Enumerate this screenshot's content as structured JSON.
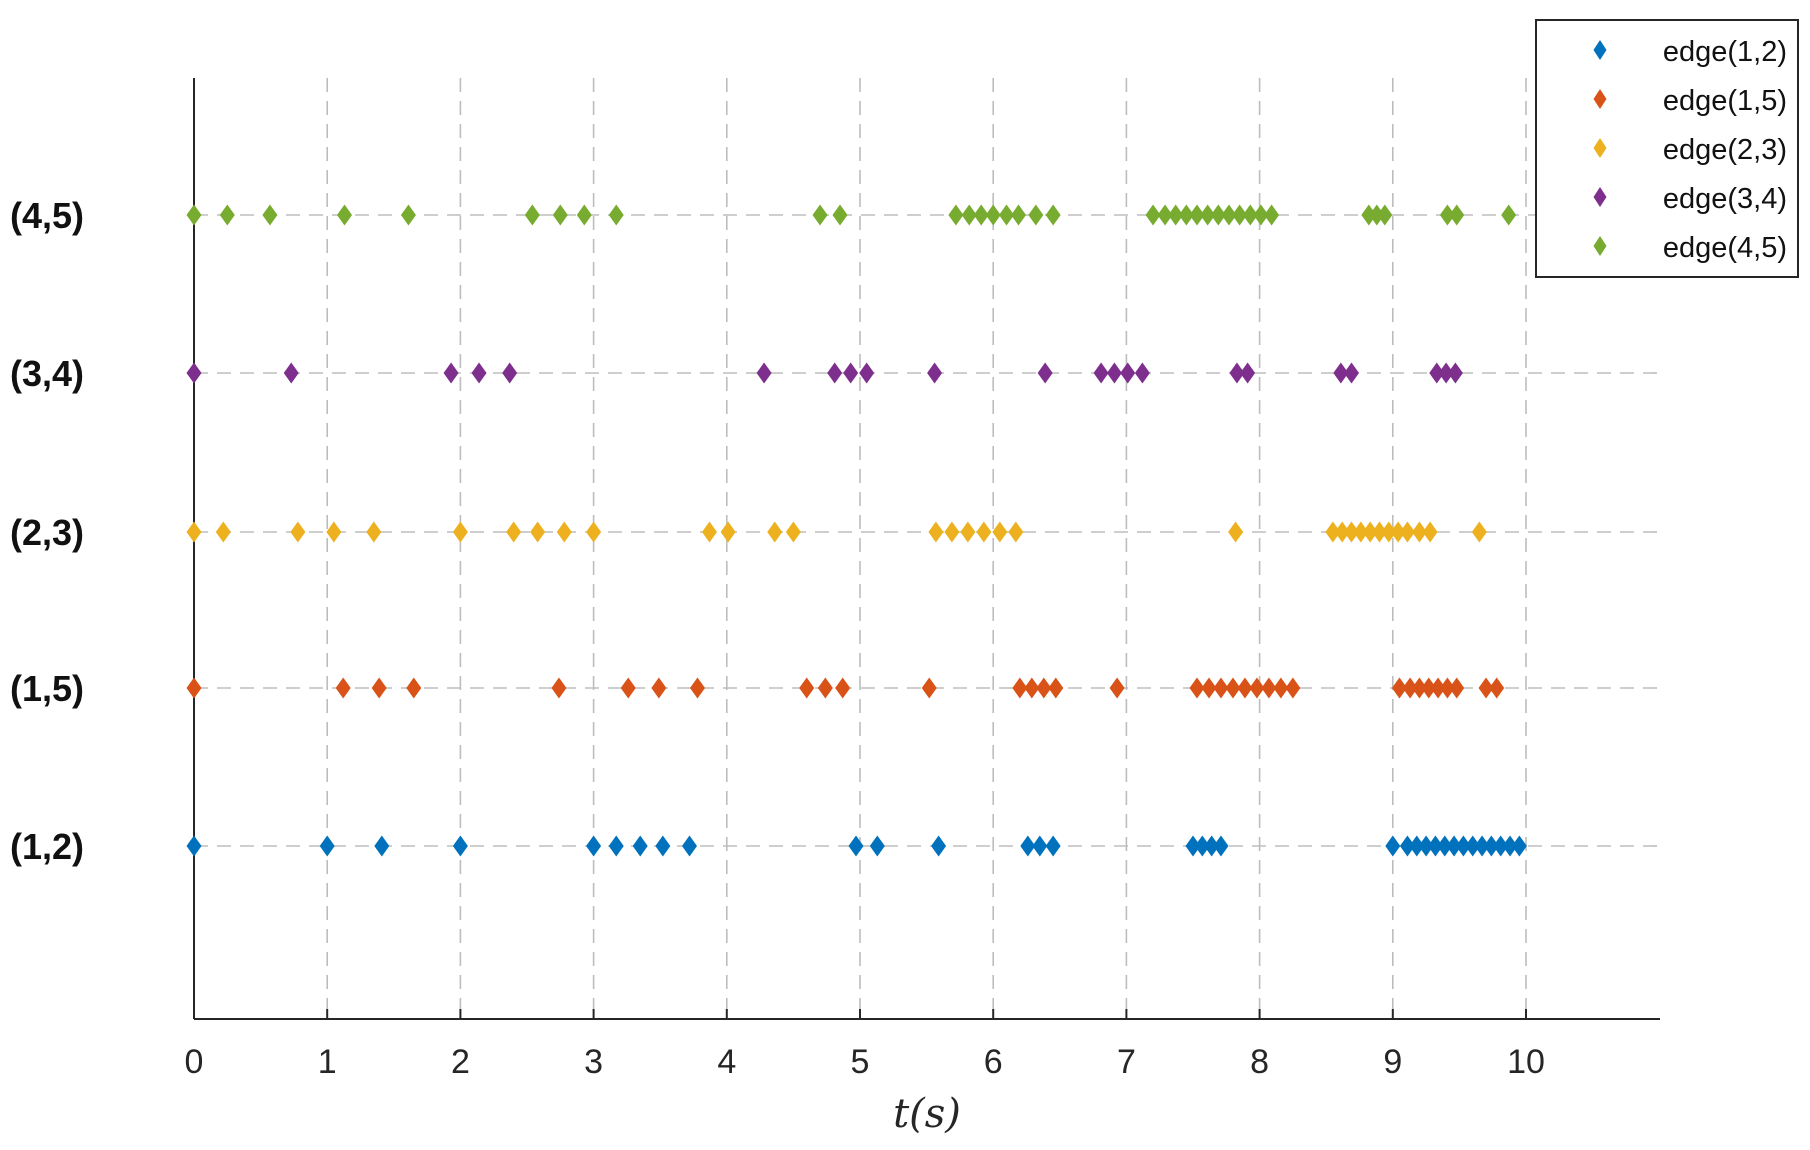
{
  "chart_data": {
    "type": "scatter",
    "title": "",
    "xlabel": "t(s)",
    "ylabel": "",
    "xlim": [
      0,
      11
    ],
    "xticks": [
      0,
      1,
      2,
      3,
      4,
      5,
      6,
      7,
      8,
      9,
      10
    ],
    "grid": true,
    "grid_style": "dashed",
    "marker": "diamond",
    "legend_position": "top-right",
    "rows": [
      "(1,2)",
      "(1,5)",
      "(2,3)",
      "(3,4)",
      "(4,5)"
    ],
    "series": [
      {
        "name": "edge(1,2)",
        "row": "(1,2)",
        "color": "#0072BD",
        "x": [
          0,
          1.0,
          1.41,
          2.0,
          3.0,
          3.17,
          3.35,
          3.52,
          3.72,
          4.97,
          5.13,
          5.59,
          6.26,
          6.35,
          6.45,
          7.5,
          7.57,
          7.64,
          7.71,
          9.0,
          9.11,
          9.18,
          9.25,
          9.32,
          9.39,
          9.46,
          9.53,
          9.6,
          9.67,
          9.74,
          9.81,
          9.88,
          9.95
        ]
      },
      {
        "name": "edge(1,5)",
        "row": "(1,5)",
        "color": "#D95319",
        "x": [
          0,
          1.12,
          1.39,
          1.65,
          2.74,
          3.26,
          3.49,
          3.78,
          4.6,
          4.74,
          4.87,
          5.52,
          6.2,
          6.29,
          6.38,
          6.47,
          6.93,
          7.53,
          7.62,
          7.71,
          7.8,
          7.89,
          7.98,
          8.07,
          8.16,
          8.25,
          9.05,
          9.13,
          9.2,
          9.27,
          9.34,
          9.41,
          9.48,
          9.7,
          9.78
        ]
      },
      {
        "name": "edge(2,3)",
        "row": "(2,3)",
        "color": "#EDB120",
        "x": [
          0,
          0.22,
          0.78,
          1.05,
          1.35,
          2.0,
          2.4,
          2.58,
          2.78,
          3.0,
          3.87,
          4.01,
          4.36,
          4.5,
          5.57,
          5.69,
          5.81,
          5.93,
          6.05,
          6.17,
          7.82,
          8.55,
          8.62,
          8.69,
          8.76,
          8.83,
          8.9,
          8.97,
          9.04,
          9.11,
          9.2,
          9.28,
          9.65
        ]
      },
      {
        "name": "edge(3,4)",
        "row": "(3,4)",
        "color": "#7E2F8E",
        "x": [
          0,
          0.73,
          1.93,
          2.14,
          2.37,
          4.28,
          4.81,
          4.93,
          5.05,
          5.56,
          6.39,
          6.81,
          6.91,
          7.01,
          7.12,
          7.83,
          7.91,
          8.61,
          8.69,
          9.33,
          9.4,
          9.47
        ]
      },
      {
        "name": "edge(4,5)",
        "row": "(4,5)",
        "color": "#77AC30",
        "x": [
          0,
          0.25,
          0.57,
          1.13,
          1.61,
          2.54,
          2.75,
          2.93,
          3.17,
          4.7,
          4.85,
          5.72,
          5.82,
          5.91,
          6.0,
          6.1,
          6.19,
          6.32,
          6.45,
          7.2,
          7.29,
          7.37,
          7.45,
          7.53,
          7.61,
          7.69,
          7.77,
          7.85,
          7.93,
          8.01,
          8.09,
          8.82,
          8.88,
          8.94,
          9.41,
          9.48,
          9.87
        ]
      }
    ]
  }
}
